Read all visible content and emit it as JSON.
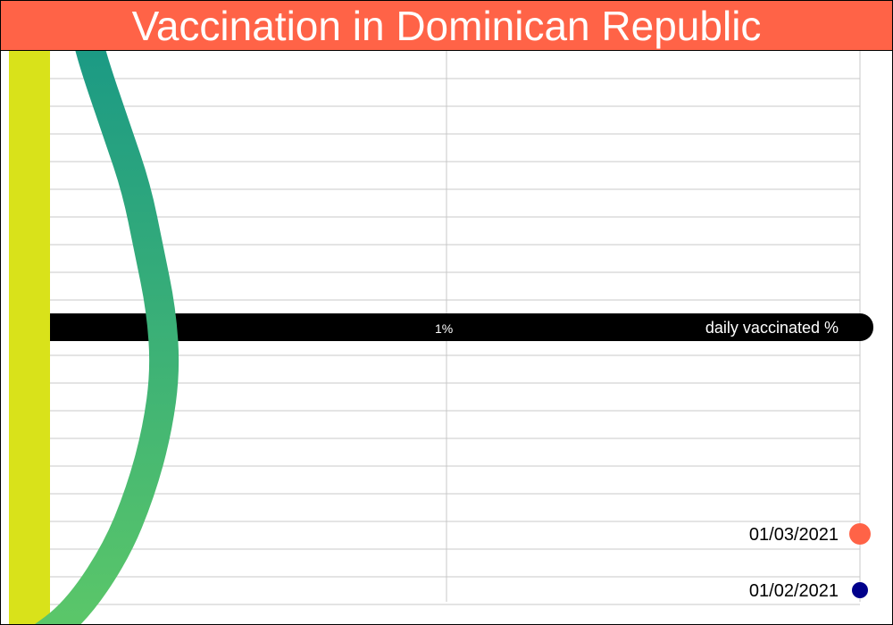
{
  "title": "Vaccination in Dominican Republic",
  "chart_data": {
    "type": "line",
    "title": "Vaccination in Dominican Republic",
    "y_axis_label": "daily vaccinated %",
    "x_tick_labels": [
      "1%"
    ],
    "x_grid_values": [
      0,
      1,
      2
    ],
    "y_date_range": [
      "01/02/2021",
      "01/03/2021"
    ],
    "grid": true,
    "series": [
      {
        "values": [
          {
            "x": 0.0,
            "y": 1.0
          },
          {
            "x": 0.1,
            "y": 0.95
          },
          {
            "x": 0.2,
            "y": 0.85
          },
          {
            "x": 0.26,
            "y": 0.75
          },
          {
            "x": 0.3,
            "y": 0.65
          },
          {
            "x": 0.32,
            "y": 0.55
          },
          {
            "x": 0.31,
            "y": 0.45
          },
          {
            "x": 0.28,
            "y": 0.35
          },
          {
            "x": 0.25,
            "y": 0.25
          },
          {
            "x": 0.2,
            "y": 0.15
          },
          {
            "x": 0.15,
            "y": 0.05
          },
          {
            "x": 0.13,
            "y": 0.0
          }
        ]
      }
    ],
    "legend": {
      "placement": "bottom-right",
      "entries": [
        {
          "label": "01/03/2021",
          "color": "#ff6347"
        },
        {
          "label": "01/02/2021",
          "color": "#00008b"
        }
      ]
    }
  },
  "colors": {
    "title_bar": "#ff6347",
    "left_bar": "#d9e21a",
    "axis_band": "#000000",
    "grid": "#c8c8c8",
    "line_start": "#1a9985",
    "line_end": "#5dc868"
  }
}
